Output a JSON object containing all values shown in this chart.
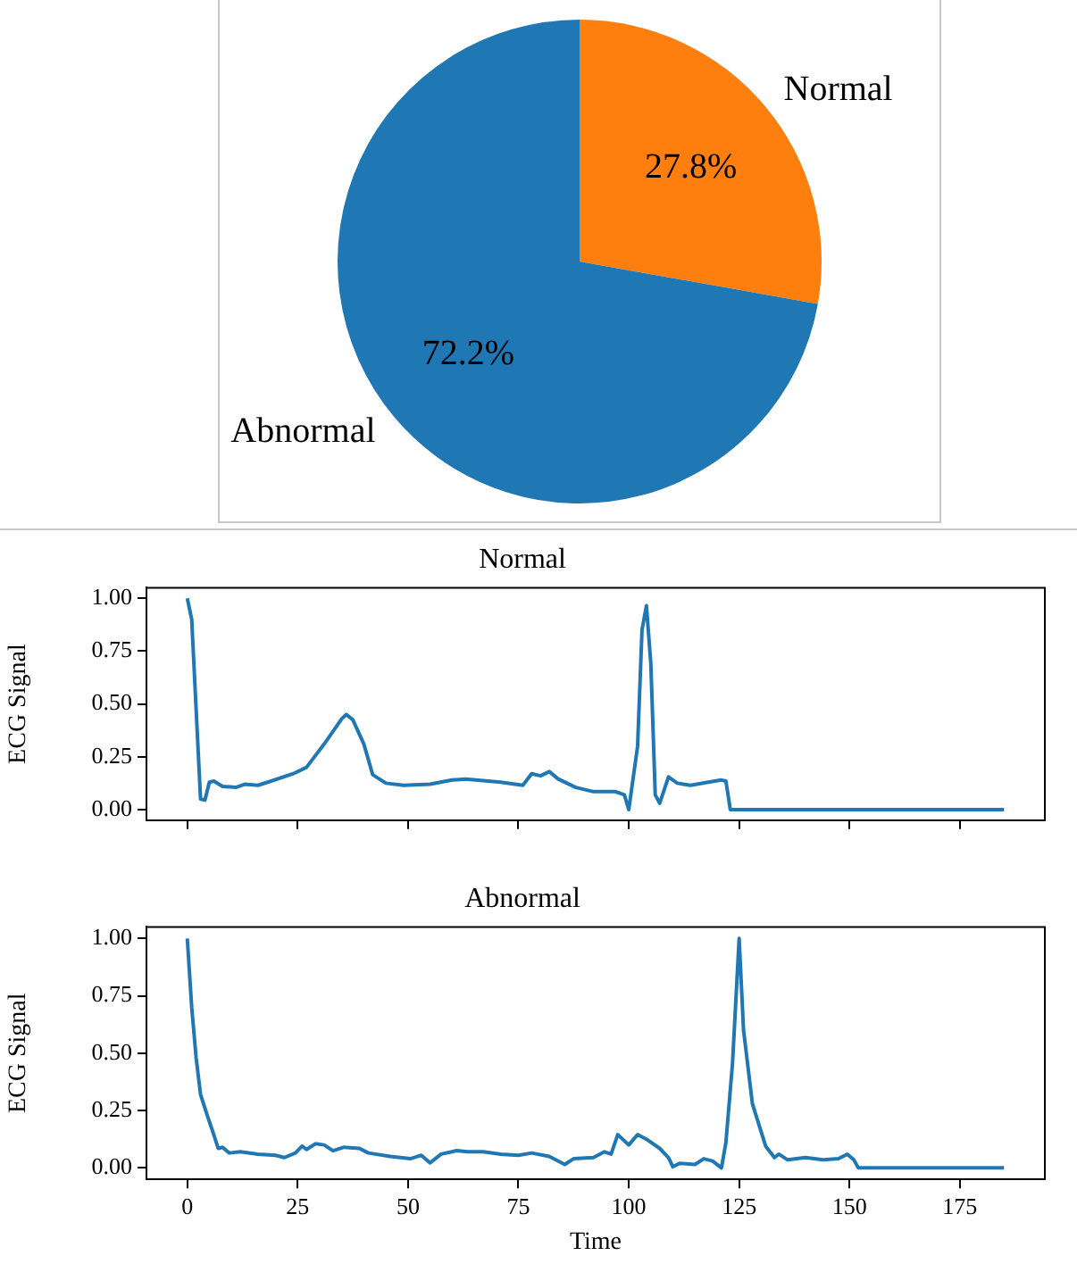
{
  "chart_data": [
    {
      "type": "pie",
      "categories": [
        "Normal",
        "Abnormal"
      ],
      "values": [
        27.8,
        72.2
      ],
      "colors": [
        "#ff7f0e",
        "#1f77b4"
      ],
      "value_labels": [
        "27.8%",
        "72.2%"
      ]
    },
    {
      "type": "line",
      "title": "Normal",
      "ylabel": "ECG Signal",
      "tick_labels": "y",
      "xlim": [
        -9.25,
        194.25
      ],
      "xticks": [
        0,
        25,
        50,
        75,
        100,
        125,
        150,
        175
      ],
      "ylim": [
        -0.05,
        1.05
      ],
      "yticks": [
        {
          "value": 0,
          "label": "0.00"
        },
        {
          "value": 0.25,
          "label": "0.25"
        },
        {
          "value": 0.5,
          "label": "0.50"
        },
        {
          "value": 0.75,
          "label": "0.75"
        },
        {
          "value": 1,
          "label": "1.00"
        }
      ],
      "grid": false,
      "legend": false,
      "x": [
        0,
        1,
        3,
        4,
        5,
        6,
        8,
        11,
        13,
        16,
        19,
        24,
        27,
        31,
        35,
        36,
        37.5,
        40,
        42,
        45,
        49,
        55,
        60,
        63,
        71,
        76,
        78,
        80,
        82,
        84,
        88,
        92,
        97,
        99,
        100,
        102,
        103,
        104,
        105,
        106,
        107,
        109,
        111,
        114,
        118,
        121,
        122,
        123,
        185
      ],
      "series": [
        {
          "color": "#1f77b4",
          "values": [
            1.0,
            0.9,
            0.05,
            0.045,
            0.13,
            0.135,
            0.11,
            0.105,
            0.12,
            0.115,
            0.135,
            0.17,
            0.2,
            0.31,
            0.43,
            0.45,
            0.425,
            0.31,
            0.165,
            0.125,
            0.115,
            0.12,
            0.14,
            0.145,
            0.13,
            0.115,
            0.17,
            0.16,
            0.18,
            0.145,
            0.105,
            0.085,
            0.085,
            0.07,
            0.0,
            0.3,
            0.85,
            0.965,
            0.69,
            0.07,
            0.03,
            0.155,
            0.125,
            0.115,
            0.13,
            0.14,
            0.135,
            0.0,
            0.0
          ]
        }
      ]
    },
    {
      "type": "line",
      "title": "Abnormal",
      "xlabel": "Time",
      "ylabel": "ECG Signal",
      "xlim": [
        -9.25,
        194.25
      ],
      "xticks": [
        0,
        25,
        50,
        75,
        100,
        125,
        150,
        175
      ],
      "ylim": [
        -0.05,
        1.05
      ],
      "yticks": [
        {
          "value": 0,
          "label": "0.00"
        },
        {
          "value": 0.25,
          "label": "0.25"
        },
        {
          "value": 0.5,
          "label": "0.50"
        },
        {
          "value": 0.75,
          "label": "0.75"
        },
        {
          "value": 1,
          "label": "1.00"
        }
      ],
      "grid": false,
      "legend": false,
      "x": [
        0,
        1,
        2,
        3,
        4.5,
        6,
        7,
        8,
        9.5,
        12,
        16,
        20,
        22,
        24.5,
        26,
        27,
        29,
        31,
        33,
        35.5,
        39,
        41,
        46,
        50.5,
        53,
        55,
        57.5,
        61,
        63.5,
        67,
        71,
        75,
        78,
        82,
        85.5,
        87.5,
        92,
        94.5,
        96,
        97.5,
        100,
        102,
        104,
        107,
        109,
        110,
        111.5,
        115,
        117,
        119,
        121,
        122,
        123.5,
        125,
        126,
        128,
        131,
        133,
        134,
        136,
        140,
        144,
        147.5,
        149.5,
        151,
        152,
        185
      ],
      "series": [
        {
          "color": "#1f77b4",
          "values": [
            1.0,
            0.7,
            0.48,
            0.32,
            0.23,
            0.145,
            0.085,
            0.09,
            0.065,
            0.07,
            0.06,
            0.055,
            0.045,
            0.065,
            0.095,
            0.08,
            0.105,
            0.1,
            0.075,
            0.09,
            0.085,
            0.065,
            0.05,
            0.04,
            0.055,
            0.022,
            0.06,
            0.075,
            0.07,
            0.07,
            0.06,
            0.055,
            0.065,
            0.05,
            0.015,
            0.04,
            0.045,
            0.07,
            0.06,
            0.145,
            0.1,
            0.145,
            0.125,
            0.085,
            0.045,
            0.005,
            0.02,
            0.015,
            0.04,
            0.03,
            0.0,
            0.11,
            0.455,
            1.0,
            0.6,
            0.28,
            0.095,
            0.045,
            0.06,
            0.035,
            0.045,
            0.035,
            0.04,
            0.06,
            0.035,
            0.0,
            0.0
          ]
        }
      ]
    }
  ]
}
